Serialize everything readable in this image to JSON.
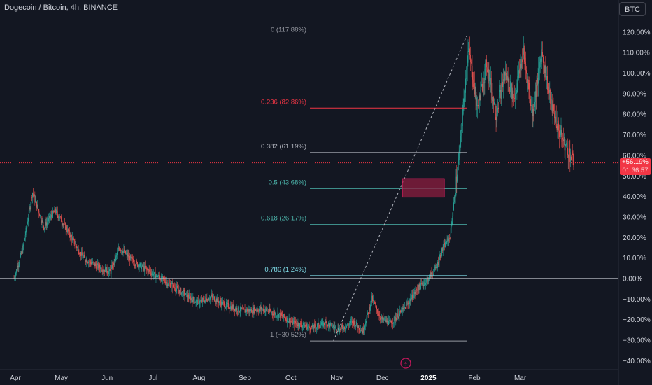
{
  "header": {
    "symbol_title": "Dogecoin / Bitcoin, 4h, BINANCE",
    "currency_label": "BTC"
  },
  "price_tag": {
    "value": "+56.19%",
    "countdown": "01:36:57"
  },
  "colors": {
    "background": "#131722",
    "up": "#26a69a",
    "down": "#ef5350",
    "fib_gray": "#9598a1",
    "fib_red": "#f23645",
    "fib_teal": "#4db6ac",
    "fib_cyan": "#80deea",
    "box_fill": "#8c1d3f",
    "box_border": "#e91e63"
  },
  "chart_data": {
    "type": "candlestick",
    "timeframe": "4h",
    "y_unit": "percent change",
    "ylim": [
      -42,
      125
    ],
    "yticks": [
      "120.00%",
      "110.00%",
      "100.00%",
      "90.00%",
      "80.00%",
      "70.00%",
      "60.00%",
      "50.00%",
      "40.00%",
      "30.00%",
      "20.00%",
      "10.00%",
      "0.00%",
      "−10.00%",
      "−20.00%",
      "−30.00%",
      "−40.00%"
    ],
    "x_labels": [
      "Apr",
      "May",
      "Jun",
      "Jul",
      "Aug",
      "Sep",
      "Oct",
      "Nov",
      "Dec",
      "2025",
      "Feb",
      "Mar"
    ],
    "current_value": 56.19,
    "price_path": [
      [
        0.0,
        0
      ],
      [
        0.2,
        15
      ],
      [
        0.4,
        42
      ],
      [
        0.65,
        25
      ],
      [
        0.9,
        33
      ],
      [
        1.2,
        22
      ],
      [
        1.5,
        10
      ],
      [
        1.8,
        6
      ],
      [
        2.1,
        3
      ],
      [
        2.3,
        15
      ],
      [
        2.6,
        8
      ],
      [
        2.9,
        4
      ],
      [
        3.2,
        0
      ],
      [
        3.6,
        -6
      ],
      [
        4.0,
        -12
      ],
      [
        4.3,
        -9
      ],
      [
        4.6,
        -13
      ],
      [
        5.0,
        -16
      ],
      [
        5.4,
        -15
      ],
      [
        5.8,
        -18
      ],
      [
        6.1,
        -22
      ],
      [
        6.5,
        -24
      ],
      [
        6.8,
        -22
      ],
      [
        7.1,
        -25
      ],
      [
        7.4,
        -21
      ],
      [
        7.6,
        -26
      ],
      [
        7.8,
        -10
      ],
      [
        8.0,
        -20
      ],
      [
        8.2,
        -22
      ],
      [
        8.5,
        -15
      ],
      [
        8.8,
        -5
      ],
      [
        9.0,
        -1
      ],
      [
        9.2,
        5
      ],
      [
        9.35,
        15
      ],
      [
        9.5,
        20
      ],
      [
        9.7,
        60
      ],
      [
        9.9,
        112
      ],
      [
        10.1,
        82
      ],
      [
        10.3,
        105
      ],
      [
        10.5,
        80
      ],
      [
        10.7,
        100
      ],
      [
        10.9,
        88
      ],
      [
        11.1,
        110
      ],
      [
        11.3,
        80
      ],
      [
        11.5,
        110
      ],
      [
        11.7,
        85
      ],
      [
        11.9,
        70
      ],
      [
        12.2,
        56.19
      ]
    ],
    "fib_retracement": [
      {
        "level": "0",
        "label": "0 (117.88%)",
        "value": 117.88,
        "color": "#9598a1"
      },
      {
        "level": "0.236",
        "label": "0.236 (82.86%)",
        "value": 82.86,
        "color": "#f23645"
      },
      {
        "level": "0.382",
        "label": "0.382 (61.19%)",
        "value": 61.19,
        "color": "#b2b5be"
      },
      {
        "level": "0.5",
        "label": "0.5 (43.68%)",
        "value": 43.68,
        "color": "#4db6ac"
      },
      {
        "level": "0.618",
        "label": "0.618 (26.17%)",
        "value": 26.17,
        "color": "#4db6ac"
      },
      {
        "level": "0.786",
        "label": "0.786 (1.24%)",
        "value": 1.24,
        "color": "#80deea"
      },
      {
        "level": "1",
        "label": "1 (−30.52%)",
        "value": -30.52,
        "color": "#9598a1"
      }
    ],
    "trend_line": {
      "from": [
        9.4,
        -30.52
      ],
      "to": [
        13.0,
        117.88
      ],
      "style": "dashed"
    },
    "zone_box": {
      "x0": 12.05,
      "x1": 13.05,
      "y0": 39.5,
      "y1": 48.5
    },
    "zero_line": 0
  }
}
